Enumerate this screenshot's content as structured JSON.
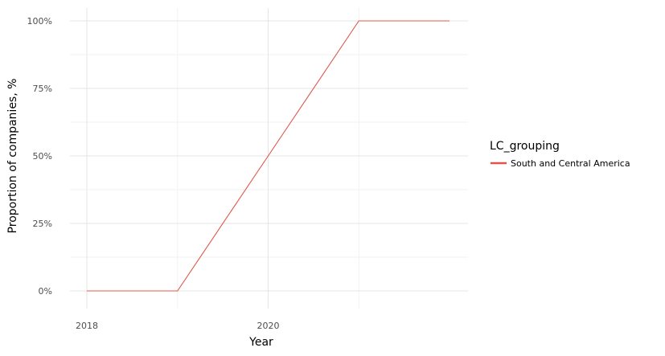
{
  "chart_data": {
    "type": "line",
    "title": "",
    "xlabel": "Year",
    "ylabel": "Proportion of companies, %",
    "x": [
      2018,
      2019,
      2020,
      2021,
      2022
    ],
    "xlim": [
      2018,
      2022
    ],
    "ylim": [
      0,
      100
    ],
    "x_ticks": [
      2018,
      2020
    ],
    "x_tick_labels": [
      "2018",
      "2020"
    ],
    "y_ticks": [
      0,
      25,
      50,
      75,
      100
    ],
    "y_tick_labels": [
      "0%",
      "25%",
      "50%",
      "75%",
      "100%"
    ],
    "grid": true,
    "legend": {
      "title": "LC_grouping",
      "position": "right"
    },
    "series": [
      {
        "name": "South and Central America",
        "color": "#e0574a",
        "values": [
          0,
          0,
          50,
          100,
          100
        ]
      }
    ]
  }
}
